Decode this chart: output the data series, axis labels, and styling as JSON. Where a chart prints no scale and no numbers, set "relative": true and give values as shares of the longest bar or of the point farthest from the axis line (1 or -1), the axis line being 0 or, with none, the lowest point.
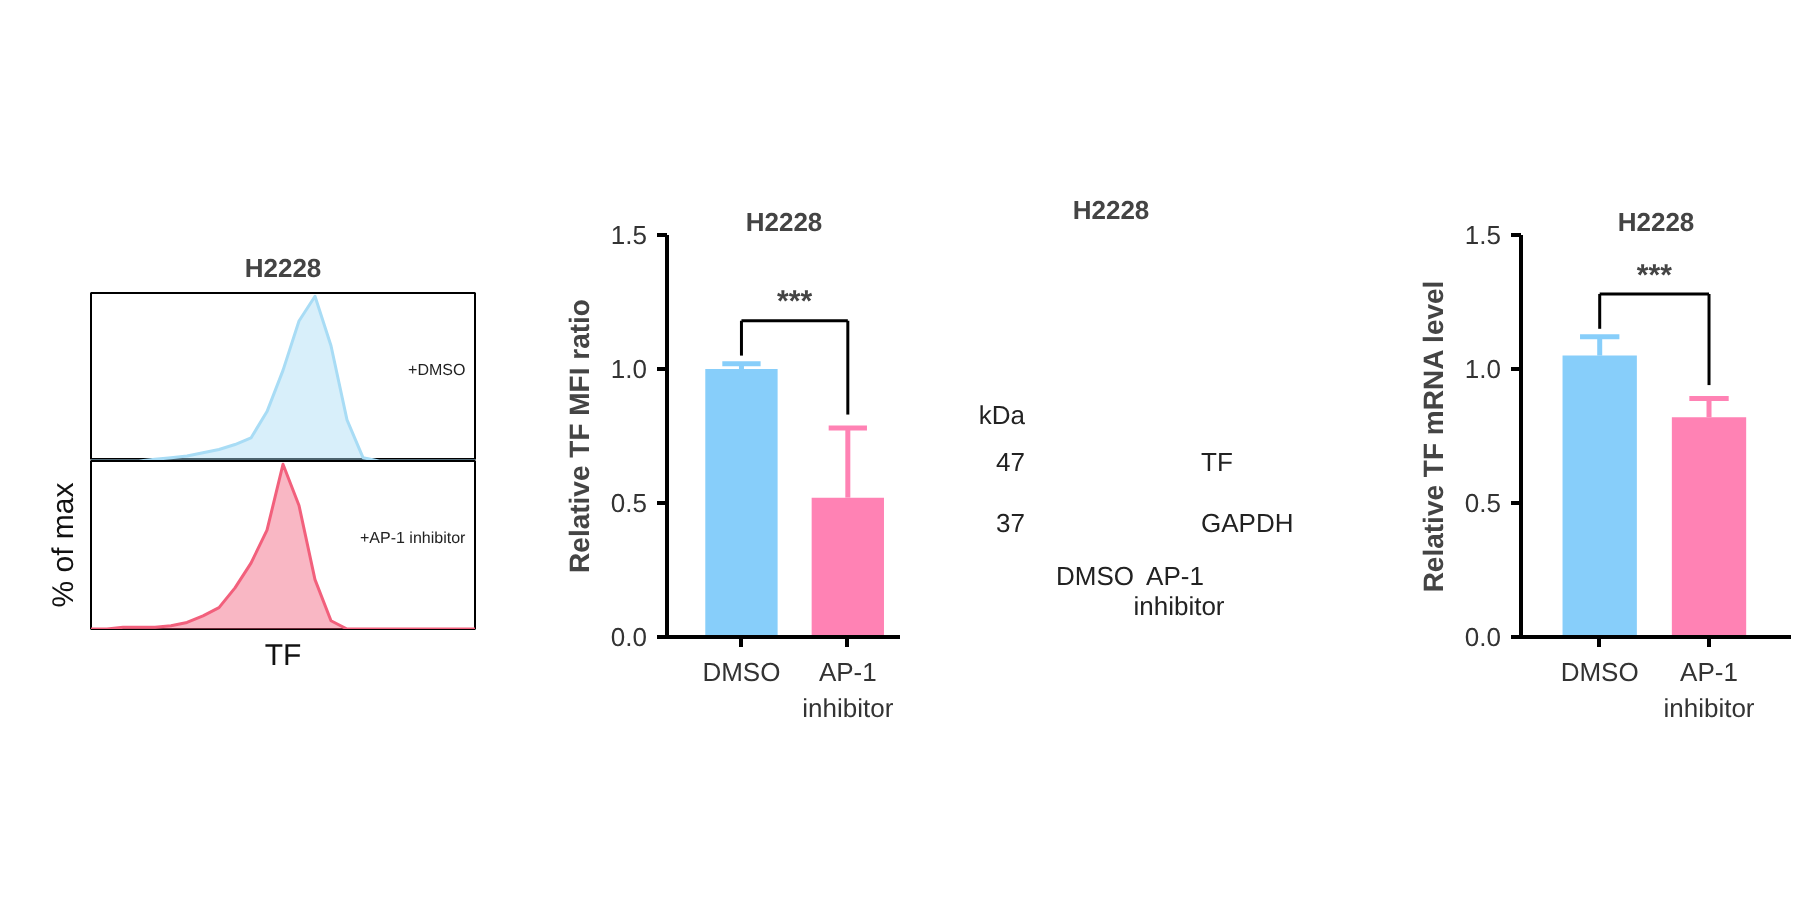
{
  "chart_data": [
    {
      "type": "area",
      "title": "H2228",
      "relative": true,
      "tick_labels": false,
      "categories": [
        null,
        null,
        null,
        null,
        null,
        null,
        null,
        null,
        null,
        null,
        null,
        null,
        null,
        null,
        null,
        null,
        null,
        null,
        null,
        null,
        null,
        null,
        null,
        null,
        null
      ],
      "annotations": [
        "+DMSO"
      ],
      "series": [
        {
          "color": "#a8dcf5",
          "values": [
            0,
            0,
            0,
            0,
            0.01,
            0.02,
            0.03,
            0.05,
            0.07,
            0.1,
            0.14,
            0.3,
            0.55,
            0.85,
            1.0,
            0.7,
            0.25,
            0.02,
            0,
            0,
            0,
            0,
            0,
            0,
            0
          ]
        }
      ]
    },
    {
      "type": "area",
      "ylabel": "% of max",
      "xlabel": "TF",
      "relative": true,
      "tick_labels": false,
      "categories": [
        null,
        null,
        null,
        null,
        null,
        null,
        null,
        null,
        null,
        null,
        null,
        null,
        null,
        null,
        null,
        null,
        null,
        null,
        null,
        null,
        null,
        null,
        null,
        null,
        null
      ],
      "annotations": [
        "+AP-1 inhibitor"
      ],
      "series": [
        {
          "color": "#f2607c",
          "values": [
            0,
            0,
            0.01,
            0.01,
            0.01,
            0.02,
            0.04,
            0.08,
            0.13,
            0.25,
            0.4,
            0.6,
            1.0,
            0.75,
            0.3,
            0.05,
            0,
            0,
            0,
            0,
            0,
            0,
            0,
            0,
            0
          ]
        }
      ]
    },
    {
      "type": "bar",
      "title": "H2228",
      "ylabel": "Relative TF MFI ratio",
      "categories": [
        "DMSO",
        "AP-1 inhibitor"
      ],
      "values": [
        1.0,
        0.52
      ],
      "colors": [
        "#87cefa",
        "#ff82b4"
      ],
      "errors": [
        [
          1.0,
          1.02
        ],
        [
          0.52,
          0.78
        ]
      ],
      "ylim": [
        0,
        1.5
      ],
      "yticks": [
        {
          "value": 0,
          "label": "0.0"
        },
        {
          "value": 0.5,
          "label": "0.5"
        },
        {
          "value": 1,
          "label": "1.0"
        },
        {
          "value": 1.5,
          "label": "1.5"
        }
      ],
      "annotations": [
        "***"
      ]
    },
    {
      "type": "other",
      "title": "H2228",
      "categories": [
        "DMSO",
        "AP-1 inhibitor"
      ],
      "annotations": [
        "kDa",
        "47",
        "37",
        "TF",
        "GAPDH"
      ]
    },
    {
      "type": "bar",
      "title": "H2228",
      "ylabel": "Relative TF mRNA level",
      "categories": [
        "DMSO",
        "AP-1 inhibitor"
      ],
      "values": [
        1.05,
        0.82
      ],
      "colors": [
        "#87cefa",
        "#ff82b4"
      ],
      "errors": [
        [
          1.05,
          1.12
        ],
        [
          0.82,
          0.89
        ]
      ],
      "ylim": [
        0,
        1.5
      ],
      "yticks": [
        {
          "value": 0,
          "label": "0.0"
        },
        {
          "value": 0.5,
          "label": "0.5"
        },
        {
          "value": 1,
          "label": "1.0"
        },
        {
          "value": 1.5,
          "label": "1.5"
        }
      ],
      "annotations": [
        "***"
      ]
    }
  ]
}
